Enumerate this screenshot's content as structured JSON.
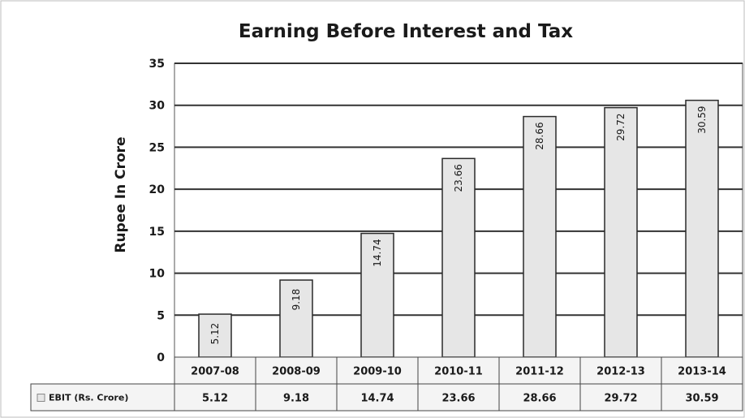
{
  "chart_data": {
    "type": "bar",
    "title": "Earning Before Interest and Tax",
    "ylabel": "Rupee In Crore",
    "xlabel": "",
    "ylim": [
      0,
      35
    ],
    "yticks": [
      0,
      5,
      10,
      15,
      20,
      25,
      30,
      35
    ],
    "grid": true,
    "categories": [
      "2007-08",
      "2008-09",
      "2009-10",
      "2010-11",
      "2011-12",
      "2012-13",
      "2013-14"
    ],
    "series": [
      {
        "name": "EBIT (Rs. Crore)",
        "values": [
          5.12,
          9.18,
          14.74,
          23.66,
          28.66,
          29.72,
          30.59
        ],
        "color": "#e6e6e6",
        "data_labels": [
          "5.12",
          "9.18",
          "14.74",
          "23.66",
          "28.66",
          "29.72",
          "30.59"
        ]
      }
    ],
    "data_table": {
      "row_label": "EBIT (Rs. Crore)",
      "values": [
        "5.12",
        "9.18",
        "14.74",
        "23.66",
        "28.66",
        "29.72",
        "30.59"
      ]
    }
  }
}
